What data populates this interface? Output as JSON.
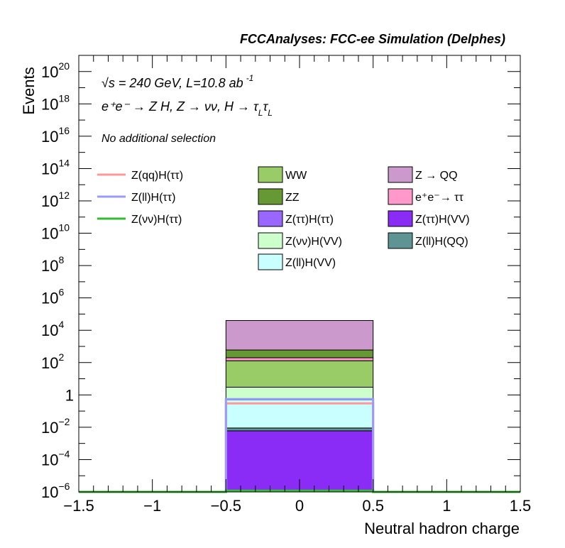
{
  "chart_data": {
    "type": "bar",
    "stacked": true,
    "title": "FCCAnalyses: FCC-ee Simulation (Delphes)",
    "xlabel": "Neutral hadron charge",
    "ylabel": "Events",
    "xlim": [
      -1.5,
      1.5
    ],
    "ylim": [
      1e-06,
      1e+21
    ],
    "yscale": "log",
    "xticks": [
      -1.5,
      -1,
      -0.5,
      0,
      0.5,
      1,
      1.5
    ],
    "xtick_labels": [
      "−1.5",
      "−1",
      "−0.5",
      "0",
      "0.5",
      "1",
      "1.5"
    ],
    "ytick_labels": [
      {
        "base": "10",
        "exp": "−6",
        "value": 1e-06
      },
      {
        "base": "10",
        "exp": "−4",
        "value": 0.0001
      },
      {
        "base": "10",
        "exp": "−2",
        "value": 0.01
      },
      {
        "base": "1",
        "exp": "",
        "value": 1
      },
      {
        "base": "10",
        "exp": "2",
        "value": 100.0
      },
      {
        "base": "10",
        "exp": "4",
        "value": 10000.0
      },
      {
        "base": "10",
        "exp": "6",
        "value": 1000000.0
      },
      {
        "base": "10",
        "exp": "8",
        "value": 100000000.0
      },
      {
        "base": "10",
        "exp": "10",
        "value": 10000000000.0
      },
      {
        "base": "10",
        "exp": "12",
        "value": 1000000000000.0
      },
      {
        "base": "10",
        "exp": "14",
        "value": 100000000000000.0
      },
      {
        "base": "10",
        "exp": "16",
        "value": 1e+16
      },
      {
        "base": "10",
        "exp": "18",
        "value": 1e+18
      },
      {
        "base": "10",
        "exp": "20",
        "value": 1e+20
      }
    ],
    "bin": [
      -0.5,
      0.5
    ],
    "stack": [
      {
        "name": "Z(ττ)H(VV)",
        "color": "#8B2BF6",
        "top": 0.006
      },
      {
        "name": "Z(ll)H(QQ)",
        "color": "#5F9495",
        "top": 0.009
      },
      {
        "name": "Z(ll)H(VV)",
        "color": "#CAFFFF",
        "top": 0.5
      },
      {
        "name": "Z(νν)H(VV)",
        "color": "#CCFFCC",
        "top": 3
      },
      {
        "name": "WW",
        "color": "#99CC66",
        "top": 130
      },
      {
        "name": "e⁺e⁻→ ττ",
        "color": "#FF99CC",
        "top": 200
      },
      {
        "name": "ZZ",
        "color": "#669933",
        "top": 600
      },
      {
        "name": "Z → QQ",
        "color": "#CC99CC",
        "top": 40000
      }
    ],
    "signals": [
      {
        "name": "Z(qq)H(ττ)",
        "color": "#FF9999",
        "value": 0.3
      },
      {
        "name": "Z(ll)H(ττ)",
        "color": "#9999FF",
        "value": 0.55
      },
      {
        "name": "Z(νν)H(ττ)",
        "color": "#33BB33",
        "value": 1.2e-06
      }
    ],
    "legend_columns": [
      [
        "Z(qq)H(ττ)",
        "Z(ll)H(ττ)",
        "Z(νν)H(ττ)"
      ],
      [
        "WW",
        "ZZ",
        "Z(ττ)H(ττ)",
        "Z(νν)H(VV)",
        "Z(ll)H(VV)"
      ],
      [
        "Z → QQ",
        "e⁺e⁻→ ττ",
        "Z(ττ)H(VV)",
        "Z(ll)H(QQ)"
      ]
    ],
    "legend_colors": {
      "WW": "#99CC66",
      "ZZ": "#669933",
      "Z(ττ)H(ττ)": "#9966FF",
      "Z(νν)H(VV)": "#CCFFCC",
      "Z(ll)H(VV)": "#CAFFFF",
      "Z → QQ": "#CC99CC",
      "e⁺e⁻→ ττ": "#FF99CC",
      "Z(ττ)H(VV)": "#8B2BF6",
      "Z(ll)H(QQ)": "#5F9495"
    },
    "annotations": {
      "energy": "√s = 240 GeV, L=10.8 ab",
      "energy_sup": "-1",
      "process": "e⁺e⁻ → Z H, Z  → νν, H  → τ",
      "process_sub1": "L",
      "process_tau2": "τ",
      "process_sub2": "L",
      "selection": "No additional selection"
    }
  }
}
